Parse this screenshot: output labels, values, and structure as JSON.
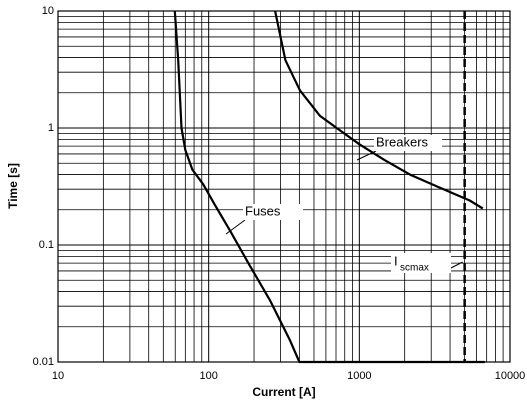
{
  "chart_data": {
    "type": "line",
    "xlabel": "Current [A]",
    "ylabel": "Time [s]",
    "xscale": "log",
    "yscale": "log",
    "grid": true,
    "minor_grid": true,
    "xlim": [
      10,
      10000
    ],
    "ylim": [
      0.01,
      10
    ],
    "xticks": [
      10,
      100,
      1000,
      10000
    ],
    "yticks": [
      0.01,
      0.1,
      1,
      10
    ],
    "series": [
      {
        "name": "Fuses",
        "color": "#000000",
        "x": [
          59.6,
          62.8,
          66,
          70,
          78,
          92,
          110,
          138,
          187,
          254,
          345,
          400,
          6800
        ],
        "values": [
          10,
          3.8,
          1,
          0.65,
          0.44,
          0.33,
          0.22,
          0.134,
          0.067,
          0.034,
          0.0155,
          0.01,
          0.01
        ]
      },
      {
        "name": "Breakers",
        "color": "#000000",
        "x": [
          276,
          323,
          403,
          548,
          740,
          1010,
          1480,
          2170,
          3400,
          5400,
          6600
        ],
        "values": [
          10,
          3.8,
          2.1,
          1.27,
          0.96,
          0.72,
          0.53,
          0.4,
          0.31,
          0.24,
          0.205
        ]
      }
    ],
    "reference_line": {
      "x": 5000,
      "color": "#000000",
      "label": {
        "text": "I",
        "subscript": "scmax"
      }
    }
  }
}
